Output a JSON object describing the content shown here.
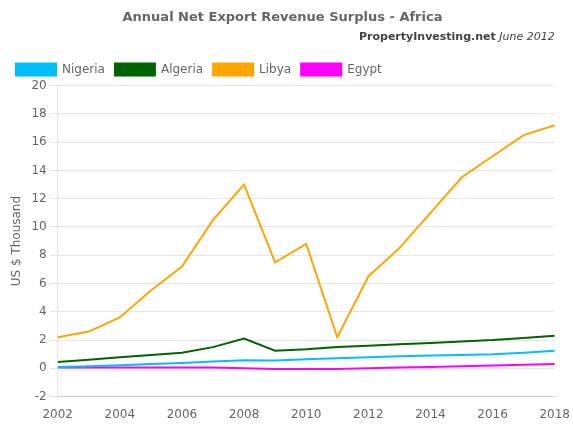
{
  "chart_data": {
    "type": "line",
    "title": "Annual Net Export Revenue Surplus - Africa",
    "ylabel": "US $ Thousand",
    "annotations": [
      "PropertyInvesting.net",
      " June 2012"
    ],
    "x": [
      2002,
      2003,
      2004,
      2005,
      2006,
      2007,
      2008,
      2009,
      2010,
      2011,
      2012,
      2013,
      2014,
      2015,
      2016,
      2017,
      2018
    ],
    "series": [
      {
        "name": "Nigeria",
        "color": "#00BFFF",
        "values": [
          0.1,
          0.15,
          0.22,
          0.3,
          0.38,
          0.48,
          0.58,
          0.55,
          0.65,
          0.72,
          0.78,
          0.85,
          0.9,
          0.95,
          1.0,
          1.1,
          1.25
        ]
      },
      {
        "name": "Algeria",
        "color": "#006400",
        "values": [
          0.45,
          0.6,
          0.78,
          0.95,
          1.1,
          1.5,
          2.1,
          1.25,
          1.35,
          1.5,
          1.6,
          1.7,
          1.8,
          1.9,
          2.0,
          2.15,
          2.3
        ]
      },
      {
        "name": "Libya",
        "color": "#FFA500",
        "values": [
          2.2,
          2.6,
          3.6,
          5.5,
          7.2,
          10.5,
          13.0,
          7.5,
          8.8,
          2.2,
          6.5,
          8.5,
          11.0,
          13.5,
          15.0,
          16.5,
          17.2
        ]
      },
      {
        "name": "Egypt",
        "color": "#FF00FF",
        "values": [
          0.05,
          0.05,
          0.05,
          0.05,
          0.05,
          0.05,
          0.0,
          -0.05,
          -0.05,
          -0.05,
          0.0,
          0.05,
          0.1,
          0.15,
          0.2,
          0.25,
          0.3
        ]
      }
    ],
    "xlim": [
      2002,
      2018
    ],
    "xticks": [
      2002,
      2004,
      2006,
      2008,
      2010,
      2012,
      2014,
      2016,
      2018
    ],
    "ylim": [
      -2,
      20
    ],
    "yticks": [
      -2,
      0,
      2,
      4,
      6,
      8,
      10,
      12,
      14,
      16,
      18,
      20
    ],
    "grid": "y",
    "legend": "upper left"
  }
}
